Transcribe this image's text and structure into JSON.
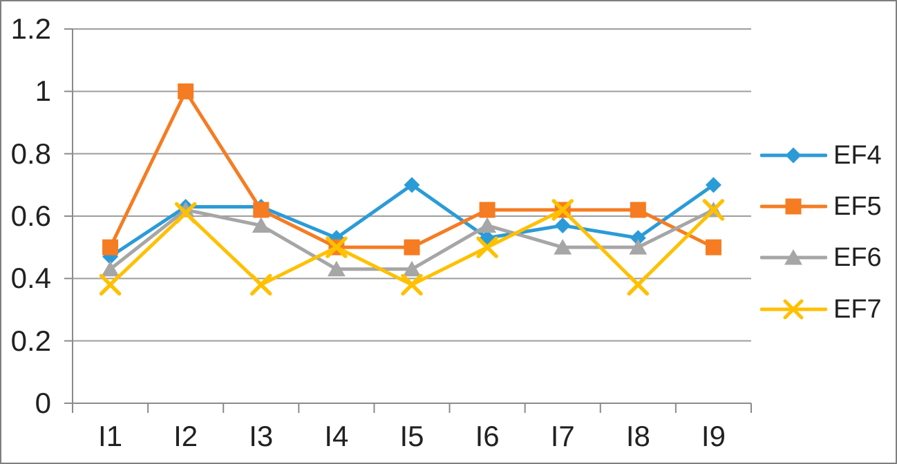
{
  "chart_data": {
    "type": "line",
    "title": "",
    "xlabel": "",
    "ylabel": "",
    "categories": [
      "I1",
      "I2",
      "I3",
      "I4",
      "I5",
      "I6",
      "I7",
      "I8",
      "I9"
    ],
    "series": [
      {
        "name": "EF4",
        "marker": "diamond",
        "color": "#2B9BD7",
        "values": [
          0.47,
          0.63,
          0.63,
          0.53,
          0.7,
          0.53,
          0.57,
          0.53,
          0.7
        ]
      },
      {
        "name": "EF5",
        "marker": "square",
        "color": "#F57C22",
        "values": [
          0.5,
          1.0,
          0.62,
          0.5,
          0.5,
          0.62,
          0.62,
          0.62,
          0.5
        ]
      },
      {
        "name": "EF6",
        "marker": "triangle",
        "color": "#A6A6A6",
        "values": [
          0.43,
          0.62,
          0.57,
          0.43,
          0.43,
          0.57,
          0.5,
          0.5,
          0.62
        ]
      },
      {
        "name": "EF7",
        "marker": "x",
        "color": "#FFC000",
        "values": [
          0.38,
          0.61,
          0.38,
          0.5,
          0.38,
          0.5,
          0.62,
          0.38,
          0.62
        ]
      }
    ],
    "ylim": [
      0,
      1.2
    ],
    "ytick_step": 0.2,
    "ytick_labels": [
      "0",
      "0.2",
      "0.4",
      "0.6",
      "0.8",
      "1",
      "1.2"
    ],
    "grid": "horizontal",
    "legend_position": "right"
  },
  "style": {
    "gridline_color": "#9d9d9d",
    "axis_color": "#8a8a8a",
    "text_color": "#212121",
    "frame_border_color": "#7f7f7f",
    "background": "#ffffff"
  }
}
